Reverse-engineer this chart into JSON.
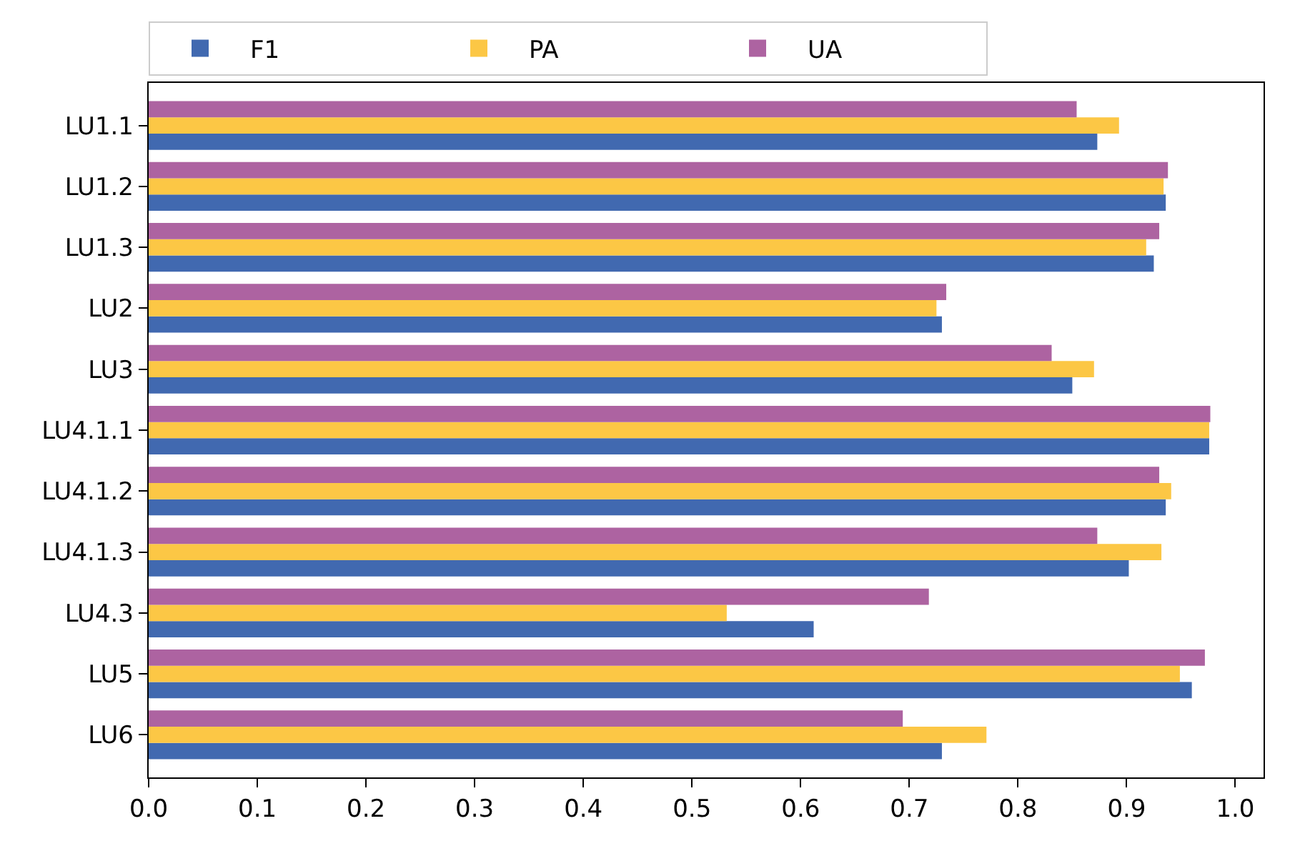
{
  "chart_data": {
    "type": "bar",
    "orientation": "horizontal",
    "categories": [
      "LU1.1",
      "LU1.2",
      "LU1.3",
      "LU2",
      "LU3",
      "LU4.1.1",
      "LU4.1.2",
      "LU4.1.3",
      "LU4.3",
      "LU5",
      "LU6"
    ],
    "series": [
      {
        "name": "F1",
        "color": "#4169b0",
        "values": [
          0.873,
          0.936,
          0.925,
          0.73,
          0.85,
          0.976,
          0.936,
          0.902,
          0.612,
          0.96,
          0.73
        ]
      },
      {
        "name": "PA",
        "color": "#fcc745",
        "values": [
          0.893,
          0.934,
          0.918,
          0.725,
          0.87,
          0.976,
          0.941,
          0.932,
          0.532,
          0.949,
          0.771
        ]
      },
      {
        "name": "UA",
        "color": "#ad63a1",
        "values": [
          0.854,
          0.938,
          0.93,
          0.734,
          0.831,
          0.977,
          0.93,
          0.873,
          0.718,
          0.972,
          0.694
        ]
      }
    ],
    "xlim": [
      0,
      1.026
    ],
    "xticks": [
      {
        "value": 0,
        "label": "0.0"
      },
      0.1,
      0.2,
      0.3,
      0.4,
      0.5,
      0.6,
      0.7,
      0.8,
      0.9,
      {
        "value": 1,
        "label": "1.0"
      }
    ],
    "grid": false,
    "legend": "top left"
  }
}
